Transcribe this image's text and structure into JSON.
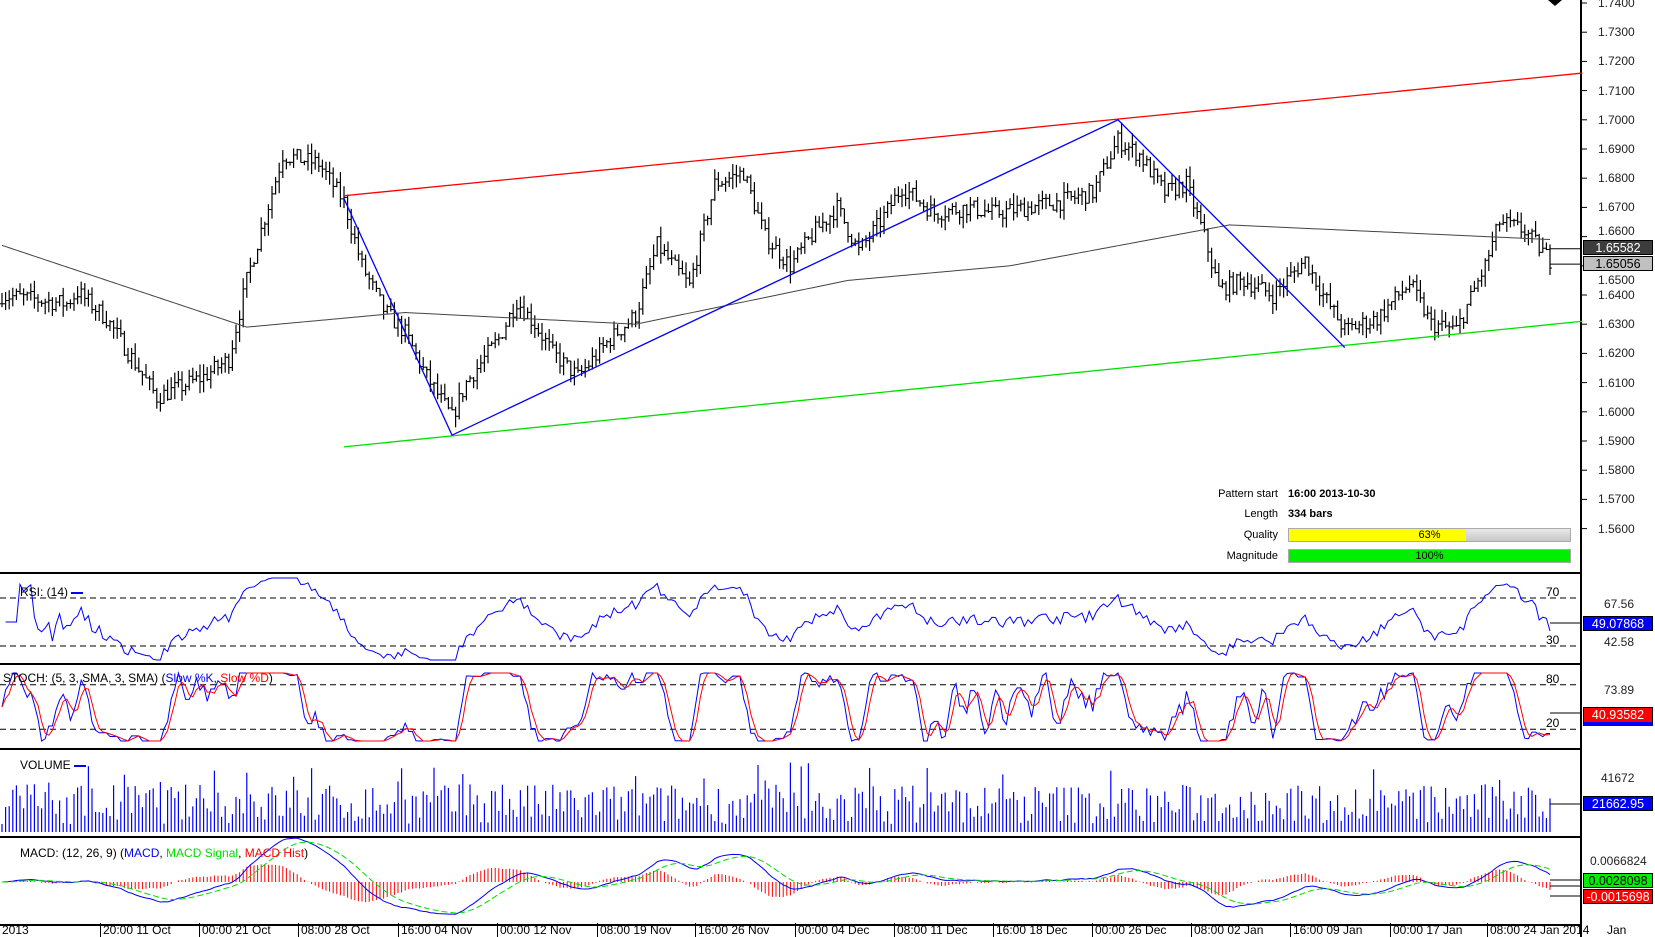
{
  "chart_data": {
    "type": "ohlc",
    "price_axis": {
      "ticks": [
        "1.7400",
        "1.7300",
        "1.7200",
        "1.7100",
        "1.7000",
        "1.6900",
        "1.6800",
        "1.6700",
        "1.6600",
        "1.6500",
        "1.6400",
        "1.6300",
        "1.6200",
        "1.6100",
        "1.6000",
        "1.5900",
        "1.5800",
        "1.5700",
        "1.5600"
      ],
      "ylim": [
        1.56,
        1.74
      ]
    },
    "time_labels": [
      "2013",
      "20:00 11 Oct",
      "00:00 21 Oct",
      "08:00 28 Oct",
      "16:00 04 Nov",
      "00:00 12 Nov",
      "08:00 19 Nov",
      "16:00 26 Nov",
      "00:00 04 Dec",
      "08:00 11 Dec",
      "16:00 18 Dec",
      "00:00 26 Dec",
      "08:00 02 Jan",
      "16:00 09 Jan",
      "00:00 17 Jan",
      "08:00 24 Jan 2014",
      "Jan 2014"
    ],
    "price_path_anchors": [
      [
        0,
        1.64
      ],
      [
        18,
        1.637
      ],
      [
        21,
        1.641
      ],
      [
        29,
        1.632
      ],
      [
        43,
        1.605
      ],
      [
        56,
        1.612
      ],
      [
        63,
        1.618
      ],
      [
        68,
        1.645
      ],
      [
        78,
        1.688
      ],
      [
        88,
        1.685
      ],
      [
        95,
        1.672
      ],
      [
        100,
        1.65
      ],
      [
        106,
        1.635
      ],
      [
        112,
        1.627
      ],
      [
        118,
        1.612
      ],
      [
        125,
        1.598
      ],
      [
        129,
        1.61
      ],
      [
        138,
        1.625
      ],
      [
        143,
        1.638
      ],
      [
        148,
        1.63
      ],
      [
        153,
        1.62
      ],
      [
        160,
        1.612
      ],
      [
        169,
        1.625
      ],
      [
        176,
        1.633
      ],
      [
        182,
        1.657
      ],
      [
        191,
        1.643
      ],
      [
        198,
        1.678
      ],
      [
        206,
        1.682
      ],
      [
        212,
        1.66
      ],
      [
        219,
        1.65
      ],
      [
        226,
        1.662
      ],
      [
        232,
        1.67
      ],
      [
        238,
        1.655
      ],
      [
        244,
        1.665
      ],
      [
        250,
        1.677
      ],
      [
        259,
        1.668
      ],
      [
        268,
        1.67
      ],
      [
        276,
        1.668
      ],
      [
        294,
        1.672
      ],
      [
        303,
        1.675
      ],
      [
        310,
        1.693
      ],
      [
        316,
        1.688
      ],
      [
        323,
        1.675
      ],
      [
        329,
        1.678
      ],
      [
        334,
        1.66
      ],
      [
        338,
        1.642
      ],
      [
        345,
        1.645
      ],
      [
        353,
        1.64
      ],
      [
        362,
        1.652
      ],
      [
        367,
        1.64
      ],
      [
        373,
        1.628
      ],
      [
        382,
        1.632
      ],
      [
        391,
        1.644
      ],
      [
        397,
        1.63
      ],
      [
        404,
        1.628
      ],
      [
        412,
        1.65
      ],
      [
        416,
        1.665
      ],
      [
        423,
        1.662
      ],
      [
        430,
        1.652
      ]
    ],
    "moving_average_anchors": [
      [
        0,
        1.657
      ],
      [
        68,
        1.629
      ],
      [
        112,
        1.634
      ],
      [
        176,
        1.63
      ],
      [
        235,
        1.645
      ],
      [
        280,
        1.65
      ],
      [
        341,
        1.664
      ],
      [
        430,
        1.659
      ]
    ],
    "resistance_line": [
      [
        95,
        1.674
      ],
      [
        439,
        1.716
      ]
    ],
    "support_line": [
      [
        95,
        1.588
      ],
      [
        439,
        1.631
      ]
    ],
    "pattern_zigzag": [
      [
        95,
        1.673
      ],
      [
        125,
        1.592
      ],
      [
        310,
        1.7
      ],
      [
        373,
        1.622
      ]
    ],
    "current_price": "1.65582",
    "ma_value": "1.65056"
  },
  "info": {
    "pattern_start_label": "Pattern start",
    "pattern_start": "16:00 2013-10-30",
    "length_label": "Length",
    "length": "334 bars",
    "quality_label": "Quality",
    "quality": "63%",
    "quality_value": 63,
    "magnitude_label": "Magnitude",
    "magnitude": "100%",
    "magnitude_value": 100
  },
  "rsi": {
    "title": "RSI: (14)",
    "level_high": "70",
    "level_low": "30",
    "axis": [
      "67.56",
      "42.58"
    ],
    "value": "49.07868"
  },
  "stoch": {
    "title_prefix": "STOCH: (5, 3, SMA, 3, SMA) (",
    "k": "Slow %K",
    "sep": ", ",
    "d": "Slow %D",
    "suffix": ")",
    "level_high": "80",
    "level_low": "20",
    "axis": [
      "73.89"
    ],
    "value": "40.93582"
  },
  "volume": {
    "title": "VOLUME",
    "axis": [
      "41672"
    ],
    "value": "21662.95"
  },
  "macd": {
    "title_prefix": "MACD: (12, 26, 9) (",
    "m": "MACD",
    "sep1": ", ",
    "s": "MACD Signal",
    "sep2": ", ",
    "h": "MACD Hist",
    "suffix": ")",
    "axis": [
      "0.0066824"
    ],
    "value_signal": "0.0028098",
    "value_hist": "-0.0015698"
  },
  "colors": {
    "resistance": "#ff0000",
    "support": "#00e000",
    "zigzag": "#0000ff",
    "quality": "#ffff00",
    "magnitude": "#00e000"
  }
}
